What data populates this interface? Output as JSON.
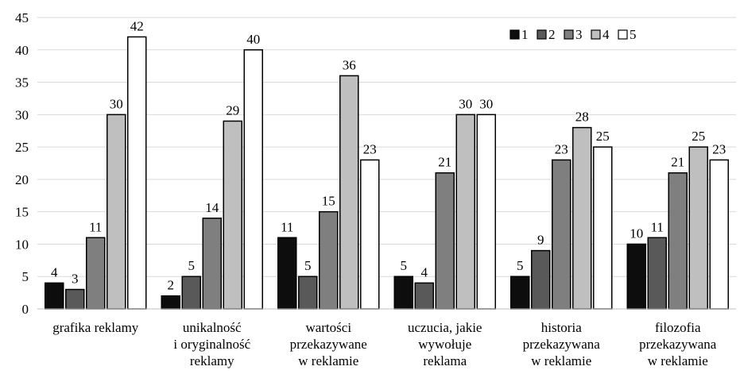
{
  "chart_data": {
    "type": "bar",
    "categories": [
      [
        "grafika reklamy"
      ],
      [
        "unikalność",
        "i oryginalność",
        "reklamy"
      ],
      [
        "wartości",
        "przekazywane",
        "w reklamie"
      ],
      [
        "uczucia, jakie",
        "wywołuje",
        "reklama"
      ],
      [
        "historia",
        "przekazywana",
        "w reklamie"
      ],
      [
        "filozofia",
        "przekazywana",
        "w reklamie"
      ]
    ],
    "series": [
      {
        "name": "1",
        "color": "#0d0d0d",
        "values": [
          4,
          2,
          11,
          5,
          5,
          10
        ]
      },
      {
        "name": "2",
        "color": "#595959",
        "values": [
          3,
          5,
          5,
          4,
          9,
          11
        ]
      },
      {
        "name": "3",
        "color": "#7f7f7f",
        "values": [
          11,
          14,
          15,
          21,
          23,
          21
        ]
      },
      {
        "name": "4",
        "color": "#bfbfbf",
        "values": [
          30,
          29,
          36,
          30,
          28,
          25
        ]
      },
      {
        "name": "5",
        "color": "#ffffff",
        "values": [
          42,
          40,
          23,
          30,
          25,
          23
        ]
      }
    ],
    "ylim": [
      0,
      45
    ],
    "yticks": [
      0,
      5,
      10,
      15,
      20,
      25,
      30,
      35,
      40,
      45
    ],
    "grid": true,
    "legend_position": "top-right",
    "data_labels": true
  }
}
